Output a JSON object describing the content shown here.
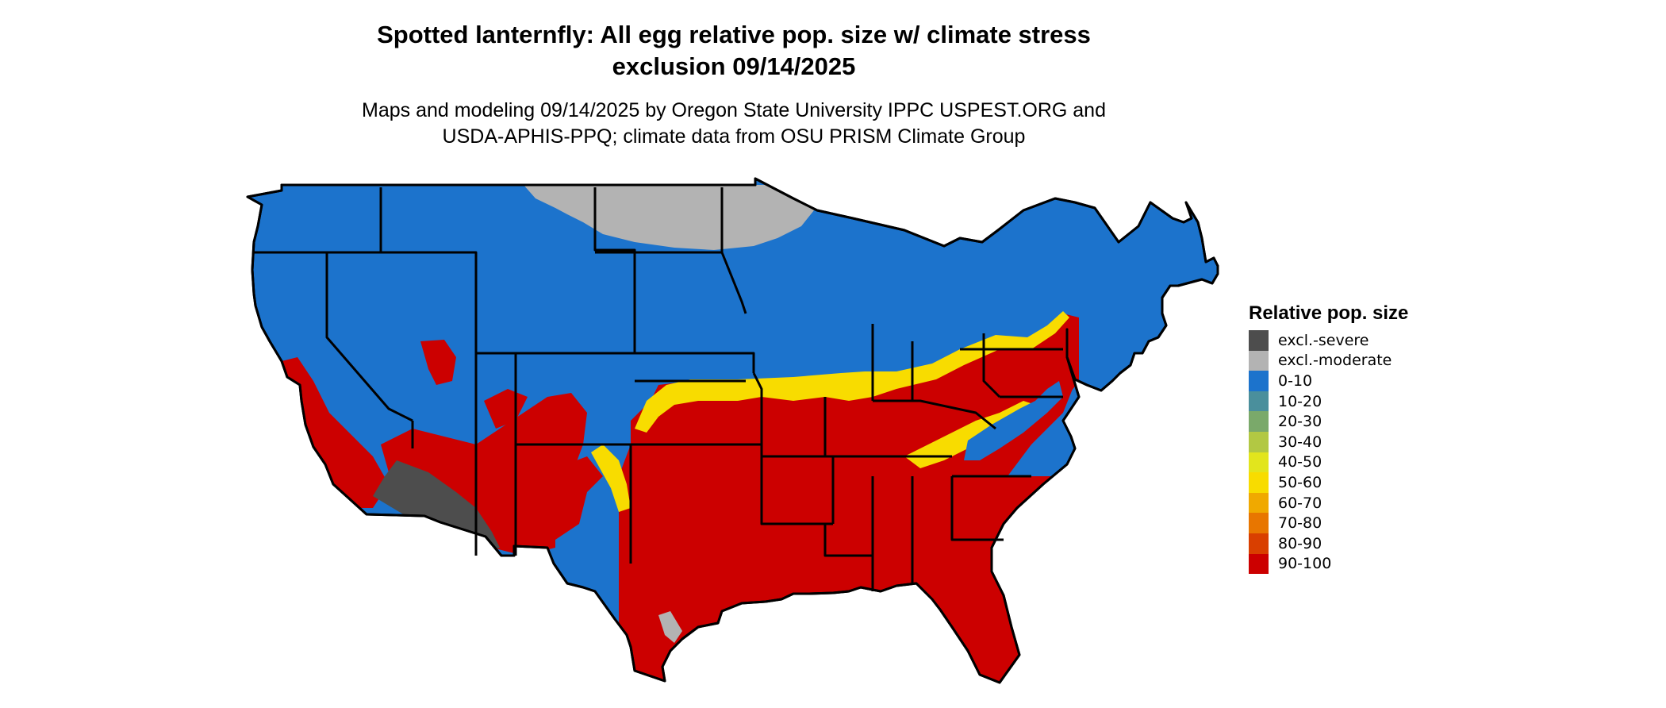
{
  "title_line1": "Spotted lanternfly: All egg relative pop. size w/ climate stress",
  "title_line2": "exclusion 09/14/2025",
  "subtitle_line1": "Maps and modeling 09/14/2025 by Oregon State University IPPC USPEST.ORG and",
  "subtitle_line2": "USDA-APHIS-PPQ; climate data from OSU PRISM Climate Group",
  "legend": {
    "title": "Relative pop. size",
    "items": [
      {
        "label": "excl.-severe",
        "color": "#4d4d4d"
      },
      {
        "label": "excl.-moderate",
        "color": "#b3b3b3"
      },
      {
        "label": "0-10",
        "color": "#1c73cc"
      },
      {
        "label": "10-20",
        "color": "#4a8f9c"
      },
      {
        "label": "20-30",
        "color": "#7aa96a"
      },
      {
        "label": "30-40",
        "color": "#b2c843"
      },
      {
        "label": "40-50",
        "color": "#e2e51d"
      },
      {
        "label": "50-60",
        "color": "#f8dc00"
      },
      {
        "label": "60-70",
        "color": "#f0a900"
      },
      {
        "label": "70-80",
        "color": "#e87600"
      },
      {
        "label": "80-90",
        "color": "#d93f00"
      },
      {
        "label": "90-100",
        "color": "#cc0000"
      }
    ]
  },
  "map": {
    "icon": "us-states-map",
    "colors": {
      "low": "#1c73cc",
      "high": "#cc0000",
      "transition": "#f8dc00",
      "excl_moderate": "#b3b3b3",
      "excl_severe": "#4d4d4d",
      "border": "#000000"
    }
  }
}
